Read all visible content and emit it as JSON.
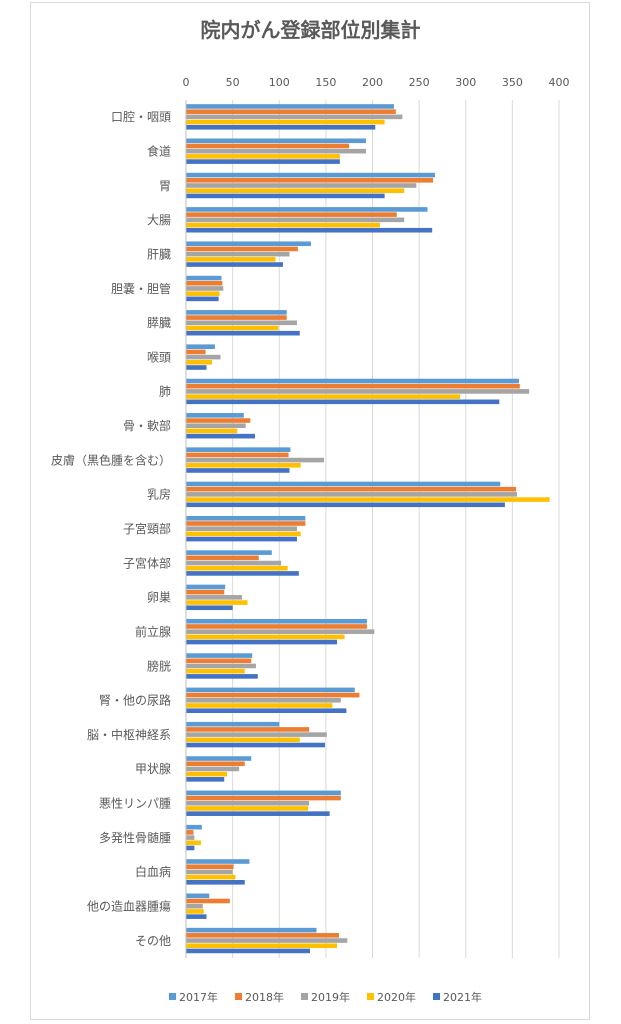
{
  "chart_data": {
    "type": "bar",
    "orientation": "horizontal",
    "title": "院内がん登録部位別集計",
    "xlabel": "",
    "ylabel": "",
    "xlim": [
      0,
      400
    ],
    "x_ticks": [
      0,
      50,
      100,
      150,
      200,
      250,
      300,
      350,
      400
    ],
    "grid": "vertical",
    "legend_position": "bottom",
    "categories": [
      "口腔・咽頭",
      "食道",
      "胃",
      "大腸",
      "肝臓",
      "胆嚢・胆管",
      "膵臓",
      "喉頭",
      "肺",
      "骨・軟部",
      "皮膚（黒色腫を含む）",
      "乳房",
      "子宮頸部",
      "子宮体部",
      "卵巣",
      "前立腺",
      "膀胱",
      "腎・他の尿路",
      "脳・中枢神経系",
      "甲状腺",
      "悪性リンパ腫",
      "多発性骨髄腫",
      "白血病",
      "他の造血器腫瘍",
      "その他"
    ],
    "series": [
      {
        "name": "2017年",
        "color": "#5b9bd5",
        "values": [
          223,
          193,
          267,
          259,
          134,
          38,
          108,
          31,
          357,
          62,
          112,
          337,
          128,
          92,
          42,
          194,
          71,
          181,
          100,
          70,
          166,
          17,
          68,
          25,
          140
        ]
      },
      {
        "name": "2018年",
        "color": "#ed7d31",
        "values": [
          225,
          175,
          265,
          226,
          120,
          39,
          108,
          21,
          358,
          69,
          110,
          354,
          128,
          78,
          41,
          194,
          70,
          186,
          132,
          63,
          166,
          8,
          51,
          47,
          164
        ]
      },
      {
        "name": "2019年",
        "color": "#a5a5a5",
        "values": [
          232,
          193,
          247,
          234,
          111,
          40,
          119,
          37,
          368,
          64,
          148,
          355,
          119,
          102,
          60,
          202,
          75,
          166,
          151,
          57,
          132,
          9,
          50,
          18,
          173
        ]
      },
      {
        "name": "2020年",
        "color": "#ffc000",
        "values": [
          213,
          165,
          234,
          208,
          96,
          36,
          99,
          28,
          294,
          55,
          123,
          390,
          123,
          109,
          66,
          170,
          63,
          157,
          122,
          44,
          131,
          16,
          53,
          19,
          162
        ]
      },
      {
        "name": "2021年",
        "color": "#4472c4",
        "values": [
          203,
          165,
          213,
          264,
          104,
          35,
          122,
          22,
          336,
          74,
          111,
          342,
          119,
          121,
          50,
          162,
          77,
          172,
          149,
          41,
          154,
          9,
          63,
          22,
          133
        ]
      }
    ]
  }
}
